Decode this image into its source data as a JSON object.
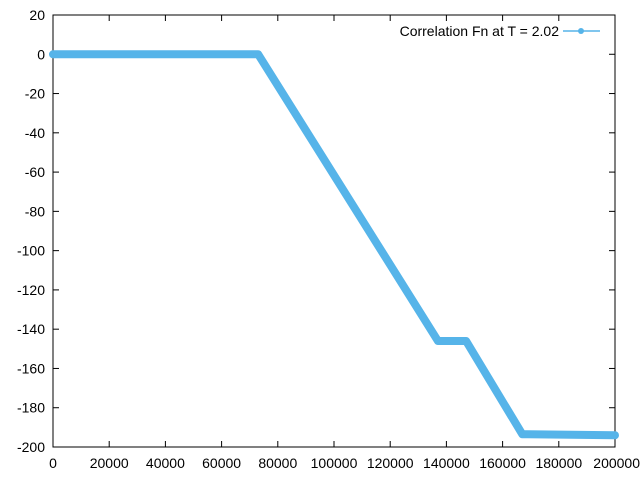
{
  "chart_data": {
    "type": "line",
    "title": "",
    "xlabel": "",
    "ylabel": "",
    "xlim": [
      0,
      200000
    ],
    "ylim": [
      -200,
      20
    ],
    "x_ticks": [
      0,
      20000,
      40000,
      60000,
      80000,
      100000,
      120000,
      140000,
      160000,
      180000,
      200000
    ],
    "x_tick_labels": [
      "0",
      "20000",
      "40000",
      "60000",
      "80000",
      "100000",
      "120000",
      "140000",
      "160000",
      "180000",
      "200000"
    ],
    "y_ticks": [
      20,
      0,
      -20,
      -40,
      -60,
      -80,
      -100,
      -120,
      -140,
      -160,
      -180,
      -200
    ],
    "y_tick_labels": [
      "20",
      "0",
      "-20",
      "-40",
      "-60",
      "-80",
      "-100",
      "-120",
      "-140",
      "-160",
      "-180",
      "-200"
    ],
    "grid": false,
    "legend_position": "top-right",
    "series": [
      {
        "name": "Correlation Fn at T = 2.02",
        "color": "#56b4e9",
        "x": [
          0,
          73000,
          137000,
          147000,
          167000,
          169000,
          200000
        ],
        "y": [
          0,
          0,
          -146,
          -146,
          -193.5,
          -193.5,
          -194
        ]
      }
    ]
  }
}
